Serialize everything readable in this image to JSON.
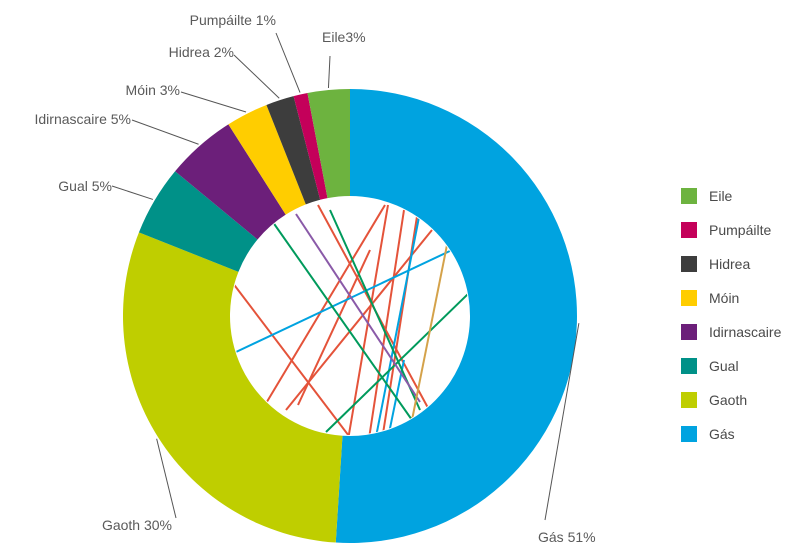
{
  "chart_data": {
    "type": "pie",
    "variant": "donut",
    "legend_position": "right",
    "slices": [
      {
        "label": "Gás",
        "callout": "Gás 51%",
        "value": 51,
        "color": "#00a3e0"
      },
      {
        "label": "Gaoth",
        "callout": "Gaoth 30%",
        "value": 30,
        "color": "#bfce00"
      },
      {
        "label": "Gual",
        "callout": "Gual 5%",
        "value": 5,
        "color": "#009188"
      },
      {
        "label": "Idirnascaire",
        "callout": "Idirnascaire 5%",
        "value": 5,
        "color": "#6c1f7a"
      },
      {
        "label": "Móin",
        "callout": "Móin 3%",
        "value": 3,
        "color": "#ffcd00"
      },
      {
        "label": "Hidrea",
        "callout": "Hidrea 2%",
        "value": 2,
        "color": "#3d3d3d"
      },
      {
        "label": "Pumpáilte",
        "callout": "Pumpáilte 1%",
        "value": 1,
        "color": "#c4005a"
      },
      {
        "label": "Eile",
        "callout": "Eile3%",
        "value": 3,
        "color": "#6db33f"
      }
    ],
    "legend_order": [
      "Eile",
      "Pumpáilte",
      "Hidrea",
      "Móin",
      "Idirnascaire",
      "Gual",
      "Gaoth",
      "Gás"
    ]
  }
}
